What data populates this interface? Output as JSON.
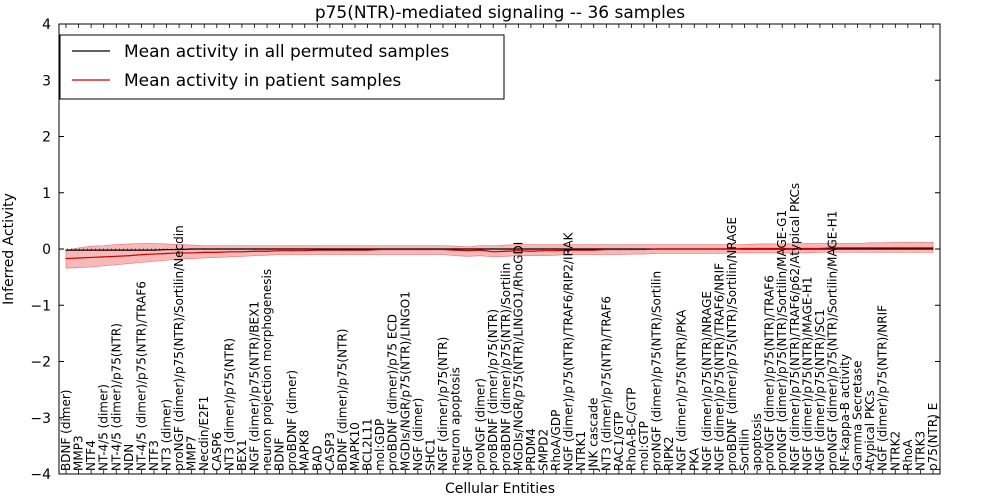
{
  "chart_data": {
    "type": "line",
    "title": "p75(NTR)-mediated signaling -- 36 samples",
    "xlabel": "Cellular Entities",
    "ylabel": "Inferred Activity",
    "ylim": [
      -4,
      4
    ],
    "yticks": [
      -4,
      -3,
      -2,
      -1,
      0,
      1,
      2,
      3,
      4
    ],
    "grid": false,
    "legend_position": "top-left",
    "categories": [
      "BDNF (dimer)",
      "MMP3",
      "NTF4",
      "NT-4/5 (dimer)",
      "NT-4/5 (dimer)/p75(NTR)",
      "NDN",
      "NT-4/5 (dimer)/p75(NTR)/TRAF6",
      "NTF3",
      "NT3 (dimer)",
      "proNGF (dimer)/p75(NTR)/Sortilin/Necdin",
      "MMP7",
      "Necdin/E2F1",
      "CASP6",
      "NT3 (dimer)/p75(NTR)",
      "BEX1",
      "NGF (dimer)/p75(NTR)/BEX1",
      "neuron projection morphogenesis",
      "BDNF",
      "proBDNF (dimer)",
      "MAPK8",
      "BAD",
      "CASP3",
      "BDNF (dimer)/p75(NTR)",
      "MAPK10",
      "BCL2L11",
      "mol:GDP",
      "proBDNF (dimer)/p75 ECD",
      "MGDIs/NGR/p75(NTR)/LINGO1",
      "NGF (dimer)",
      "SHC1",
      "NGF (dimer)/p75(NTR)",
      "neuron apoptosis",
      "NGF",
      "proNGF (dimer)",
      "proBDNF (dimer)/p75(NTR)",
      "proBDNF (dimer)/p75(NTR)/Sortilin",
      "MGDIs/NGR/p75(NTR)/LINGO1/RhoGDI",
      "PRDM4",
      "SMPD2",
      "RhoA/GDP",
      "NGF (dimer)/p75(NTR)/TRAF6/RIP2/IRAK",
      "NTRK1",
      "JNK cascade",
      "NT3 (dimer)/p75(NTR)/TRAF6",
      "RAC1/GTP",
      "RhoA-B-C/GTP",
      "mol:GTP",
      "proNGF (dimer)/p75(NTR)/Sortilin",
      "RIPK2",
      "NGF (dimer)/p75(NTR)/PKA",
      "PKA",
      "NGF (dimer)/p75(NTR)/NRAGE",
      "NGF (dimer)/p75(NTR)/TRAF6/NRIF",
      "proBDNF (dimer)/p75(NTR)/Sortilin/NRAGE",
      "Sortilin",
      "apoptosis",
      "proNGF (dimer)/p75(NTR)/TRAF6",
      "proNGF (dimer)/p75(NTR)/Sortilin/MAGE-G1",
      "NGF (dimer)/p75(NTR)/TRAF6/p62/Atypical PKCs",
      "NGF (dimer)/p75(NTR)/MAGE-H1",
      "NGF (dimer)/p75(NTR)/SC1",
      "proNGF (dimer)/p75(NTR)/Sortilin/MAGE-H1",
      "NF-kappa-B activity",
      "Gamma Secretase",
      "Atypical PKCs",
      "NGF (dimer)/p75(NTR)/NRIF",
      "NTRK2",
      "RhoA",
      "NTRK3",
      "p75(NTR) E"
    ],
    "tick_labels_shown": [
      "BDNF (dimer)",
      "MMP3",
      "NTF4",
      "NT-4/5 (dimer)",
      "NT-4/5 (dimer)/p75(NTR)",
      "NDN",
      "NT-4/5 (dimer)/p75(NTR)/TRAF6",
      "NTF3",
      "NT3 (dimer)",
      "proNGF (dimer)/p75(NTR)/Sortilin/Necdin",
      "MMP7",
      "Necdin/E2F1",
      "CASP6",
      "NT3 (dimer)/p75(NTR)",
      "BEX1",
      "NGF (dimer)/p75(NTR)/BEX1",
      "neuron projection morphogenesis",
      "BDNF",
      "proBDNF (dimer)",
      "MAPK8",
      "BAD",
      "CASP3",
      "BDNF (dimer)/p75(NTR)",
      "MAPK10",
      "BCL2L11",
      "mol:GDP",
      "proBDNF (dimer)/p75 ECD",
      "MGDIs/NGR/p75(NTR)/LINGO1",
      "NGF (dimer)",
      "SHC1",
      "NGF (dimer)/p75(NTR)",
      "neuron apoptosis",
      "NGF",
      "proNGF (dimer)",
      "proBDNF (dimer)/p75(NTR)",
      "proBDNF (dimer)/p75(NTR)/Sortilin",
      "MGDIs/NGR/p75(NTR)/LINGO1/RhoGDI",
      "PRDM4",
      "SMPD2",
      "RhoA/GDP",
      "NGF (dimer)/p75(NTR)/TRAF6/RIP2/IRAK",
      "NTRK1",
      "JNK cascade",
      "NT3 (dimer)/p75(NTR)/TRAF6",
      "RAC1/GTP",
      "RhoA-B-C/GTP",
      "mol:GTP",
      "proNGF (dimer)/p75(NTR)/Sortilin",
      "RIPK2",
      "NGF (dimer)/p75(NTR)/PKA",
      "PKA",
      "NGF (dimer)/p75(NTR)/NRAGE",
      "NGF (dimer)/p75(NTR)/TRAF6/NRIF",
      "proBDNF (dimer)/p75(NTR)/Sortilin/NRAGE",
      "Sortilin",
      "apoptosis",
      "proNGF (dimer)/p75(NTR)/TRAF6",
      "proNGF (dimer)/p75(NTR)/Sortilin/MAGE-G1",
      "NGF (dimer)/p75(NTR)/TRAF6/p62/Atypical PKCs",
      "NGF (dimer)/p75(NTR)/MAGE-H1",
      "NGF (dimer)/p75(NTR)/SC1",
      "proNGF (dimer)/p75(NTR)/Sortilin/MAGE-H1",
      "NF-kappa-B activity",
      "Gamma Secretase",
      "Atypical PKCs",
      "NGF (dimer)/p75(NTR)/NRIF",
      "NTRK2",
      "RhoA",
      "NTRK3",
      "p75(NTR) E"
    ],
    "series": [
      {
        "name": "Mean activity in all permuted samples",
        "color": "#000000",
        "values": [
          -0.02,
          -0.02,
          -0.02,
          -0.02,
          -0.02,
          -0.02,
          -0.02,
          -0.02,
          -0.01,
          -0.01,
          0.0,
          0.0,
          0.0,
          0.0,
          0.0,
          0.0,
          0.0,
          0.0,
          0.0,
          0.0,
          0.0,
          0.0,
          0.0,
          0.0,
          0.0,
          0.0,
          0.0,
          0.0,
          0.0,
          0.0,
          0.0,
          0.0,
          0.0,
          0.0,
          0.0,
          0.0,
          0.0,
          0.0,
          0.0,
          0.0,
          0.0,
          0.0,
          0.0,
          0.0,
          0.0,
          0.0,
          0.0,
          0.0,
          0.0,
          0.0,
          0.0,
          0.0,
          0.0,
          0.0,
          0.0,
          0.0,
          0.0,
          0.0,
          0.0,
          0.0,
          0.0,
          0.0,
          0.0,
          0.0,
          0.0,
          0.0,
          0.0,
          0.0,
          0.0,
          0.0
        ]
      },
      {
        "name": "Mean activity in patient samples",
        "color": "#cc0000",
        "band_color": "#f4a0a0",
        "values": [
          -0.17,
          -0.16,
          -0.15,
          -0.14,
          -0.13,
          -0.12,
          -0.1,
          -0.09,
          -0.08,
          -0.07,
          -0.07,
          -0.06,
          -0.06,
          -0.05,
          -0.05,
          -0.04,
          -0.04,
          -0.03,
          -0.03,
          -0.03,
          -0.02,
          -0.02,
          -0.02,
          -0.02,
          -0.02,
          -0.01,
          -0.01,
          -0.01,
          -0.01,
          -0.01,
          -0.01,
          -0.02,
          -0.03,
          -0.02,
          -0.05,
          -0.04,
          -0.03,
          -0.04,
          -0.03,
          -0.03,
          -0.02,
          -0.02,
          -0.02,
          -0.01,
          -0.01,
          -0.01,
          -0.01,
          0.0,
          0.0,
          0.0,
          0.0,
          0.0,
          0.0,
          0.0,
          0.01,
          0.01,
          0.01,
          0.01,
          0.01,
          0.01,
          0.01,
          0.02,
          0.02,
          0.02,
          0.02,
          0.02,
          0.02,
          0.02,
          0.02,
          0.02
        ],
        "band_upper": [
          -0.02,
          0.02,
          0.05,
          0.06,
          0.08,
          0.09,
          0.1,
          0.1,
          0.09,
          0.08,
          0.07,
          0.06,
          0.06,
          0.06,
          0.06,
          0.06,
          0.06,
          0.06,
          0.06,
          0.06,
          0.06,
          0.06,
          0.06,
          0.06,
          0.06,
          0.06,
          0.06,
          0.06,
          0.06,
          0.06,
          0.06,
          0.05,
          0.04,
          0.06,
          0.06,
          0.07,
          0.08,
          0.08,
          0.08,
          0.08,
          0.08,
          0.08,
          0.08,
          0.08,
          0.08,
          0.08,
          0.08,
          0.08,
          0.08,
          0.08,
          0.08,
          0.08,
          0.08,
          0.08,
          0.08,
          0.09,
          0.09,
          0.09,
          0.09,
          0.1,
          0.1,
          0.1,
          0.1,
          0.1,
          0.11,
          0.11,
          0.12,
          0.12,
          0.12,
          0.12
        ],
        "band_lower": [
          -0.34,
          -0.33,
          -0.32,
          -0.3,
          -0.28,
          -0.26,
          -0.24,
          -0.22,
          -0.2,
          -0.18,
          -0.17,
          -0.16,
          -0.15,
          -0.14,
          -0.13,
          -0.12,
          -0.11,
          -0.1,
          -0.1,
          -0.1,
          -0.1,
          -0.1,
          -0.1,
          -0.1,
          -0.1,
          -0.1,
          -0.1,
          -0.1,
          -0.1,
          -0.1,
          -0.1,
          -0.12,
          -0.13,
          -0.12,
          -0.14,
          -0.13,
          -0.12,
          -0.12,
          -0.12,
          -0.11,
          -0.1,
          -0.1,
          -0.1,
          -0.1,
          -0.1,
          -0.09,
          -0.09,
          -0.08,
          -0.08,
          -0.08,
          -0.08,
          -0.08,
          -0.08,
          -0.07,
          -0.07,
          -0.07,
          -0.07,
          -0.07,
          -0.07,
          -0.07,
          -0.06,
          -0.06,
          -0.06,
          -0.06,
          -0.06,
          -0.06,
          -0.06,
          -0.06,
          -0.06,
          -0.06
        ]
      }
    ],
    "baseline": {
      "y": 0,
      "style": "dotted"
    }
  }
}
